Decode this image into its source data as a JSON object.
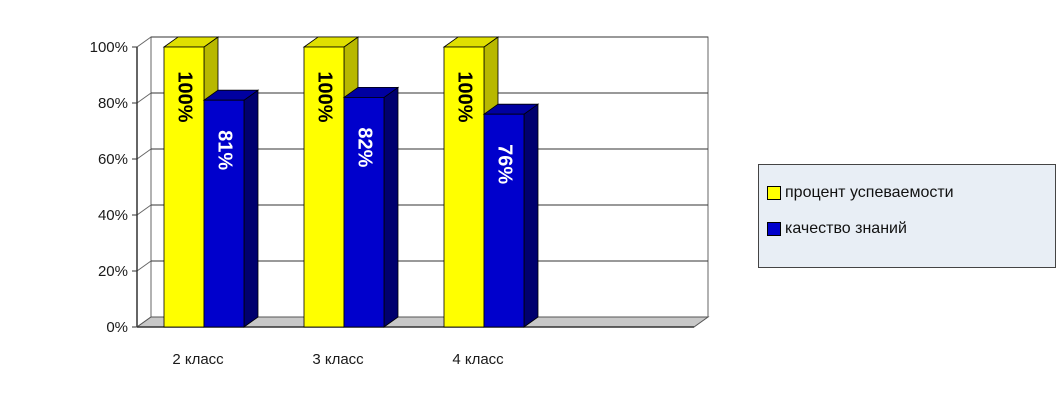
{
  "chart_data": {
    "type": "bar",
    "categories": [
      "2 класс",
      "3 класс",
      "4 класс"
    ],
    "series": [
      {
        "name": "процент успеваемости",
        "values": [
          100,
          100,
          100
        ],
        "labels": [
          "100%",
          "100%",
          "100%"
        ],
        "color": "#ffff00",
        "side_color": "#b8b800",
        "top_color": "#e0e000"
      },
      {
        "name": "качество знаний",
        "values": [
          81,
          82,
          76
        ],
        "labels": [
          "81%",
          "82%",
          "76%"
        ],
        "color": "#0000cc",
        "side_color": "#00006e",
        "top_color": "#0000a0"
      }
    ],
    "yticks": [
      "0%",
      "20%",
      "40%",
      "60%",
      "80%",
      "100%"
    ],
    "ylim": [
      0,
      100
    ],
    "grid": true,
    "legend_position": "right",
    "label_colors": {
      "on_yellow": "#000000",
      "on_blue": "#ffffff"
    }
  }
}
